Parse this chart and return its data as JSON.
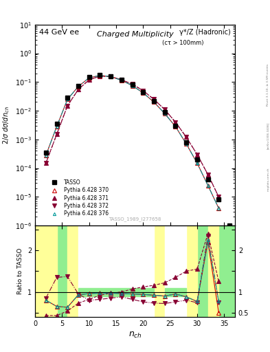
{
  "title_main": "44 GeV ee",
  "title_right": "γ*/Z (Hadronic)",
  "plot_title": "Charged Multiplicity",
  "plot_subtitle": "(cτ > 100mm)",
  "ylabel_main": "2/σ dσ/dn_ch",
  "ylabel_ratio": "Ratio to TASSO",
  "xlabel": "n_{ch}",
  "watermark": "TASSO_1989_I277658",
  "rivet_label": "Rivet 3.1.10, ≥ 3.5M events",
  "arxiv_label": "[arXiv:1306.3436]",
  "mcplots_label": "mcplots.cern.ch",
  "tasso_x": [
    2,
    4,
    6,
    8,
    10,
    12,
    14,
    16,
    18,
    20,
    22,
    24,
    26,
    28,
    30,
    32,
    34,
    36
  ],
  "tasso_y": [
    0.00035,
    0.0035,
    0.028,
    0.075,
    0.15,
    0.175,
    0.16,
    0.12,
    0.08,
    0.045,
    0.022,
    0.009,
    0.003,
    0.0008,
    0.0002,
    4e-05,
    8e-06,
    1e-06
  ],
  "p370_x": [
    2,
    4,
    6,
    8,
    10,
    12,
    14,
    16,
    18,
    20,
    22,
    24,
    26,
    28,
    30,
    32,
    34
  ],
  "p370_y": [
    0.00028,
    0.0028,
    0.025,
    0.07,
    0.14,
    0.17,
    0.155,
    0.115,
    0.075,
    0.042,
    0.02,
    0.008,
    0.0028,
    0.0007,
    0.00015,
    2.5e-05,
    4e-06
  ],
  "p371_x": [
    2,
    4,
    6,
    8,
    10,
    12,
    14,
    16,
    18,
    20,
    22,
    24,
    26,
    28,
    30,
    32,
    34
  ],
  "p371_y": [
    0.00015,
    0.0015,
    0.015,
    0.055,
    0.12,
    0.16,
    0.155,
    0.12,
    0.085,
    0.05,
    0.025,
    0.011,
    0.004,
    0.0012,
    0.0003,
    6e-05,
    1e-05
  ],
  "p372_x": [
    2,
    4,
    6,
    8,
    10,
    12,
    14,
    16,
    18,
    20,
    22,
    24,
    26,
    28,
    30,
    32,
    34
  ],
  "p372_y": [
    0.00015,
    0.0015,
    0.015,
    0.055,
    0.12,
    0.16,
    0.155,
    0.12,
    0.085,
    0.05,
    0.025,
    0.011,
    0.004,
    0.0012,
    0.0003,
    6e-05,
    1e-05
  ],
  "p376_x": [
    2,
    4,
    6,
    8,
    10,
    12,
    14,
    16,
    18,
    20,
    22,
    24,
    26,
    28,
    30,
    32,
    34
  ],
  "p376_y": [
    0.00028,
    0.0028,
    0.025,
    0.07,
    0.14,
    0.17,
    0.155,
    0.115,
    0.075,
    0.042,
    0.02,
    0.008,
    0.0028,
    0.0007,
    0.00015,
    2.5e-05,
    4e-06
  ],
  "ratio370_x": [
    2,
    4,
    6,
    8,
    10,
    12,
    14,
    16,
    18,
    20,
    22,
    24,
    26,
    28,
    30,
    32,
    34
  ],
  "ratio370_y": [
    0.8,
    0.65,
    0.63,
    0.93,
    0.96,
    0.97,
    0.97,
    0.96,
    0.95,
    0.94,
    0.92,
    0.9,
    0.95,
    0.88,
    0.77,
    2.2,
    0.5
  ],
  "ratio371_x": [
    2,
    4,
    6,
    8,
    10,
    12,
    14,
    16,
    18,
    20,
    22,
    24,
    26,
    28,
    30,
    32,
    34
  ],
  "ratio371_y": [
    0.43,
    0.43,
    0.54,
    0.73,
    0.82,
    0.92,
    0.97,
    1.0,
    1.07,
    1.12,
    1.16,
    1.22,
    1.35,
    1.5,
    1.55,
    2.4,
    1.25
  ],
  "ratio372_x": [
    2,
    4,
    6,
    8,
    10,
    12,
    14,
    16,
    18,
    20,
    22,
    24,
    26,
    28,
    30,
    32,
    34
  ],
  "ratio372_y": [
    0.85,
    1.35,
    1.37,
    0.95,
    0.8,
    0.82,
    0.85,
    0.88,
    0.82,
    0.76,
    0.73,
    0.72,
    0.76,
    0.8,
    0.74,
    2.35,
    0.75
  ],
  "ratio376_x": [
    2,
    4,
    6,
    8,
    10,
    12,
    14,
    16,
    18,
    20,
    22,
    24,
    26,
    28,
    30,
    32,
    34
  ],
  "ratio376_y": [
    0.8,
    0.65,
    0.63,
    0.93,
    0.96,
    0.97,
    0.97,
    0.96,
    0.95,
    0.94,
    0.92,
    0.9,
    0.95,
    0.88,
    0.77,
    2.25,
    0.78
  ],
  "color_tasso": "#000000",
  "color_370": "#cc0000",
  "color_371": "#880033",
  "color_372": "#880033",
  "color_376": "#009999",
  "bg_color_green": "#90ee90",
  "bg_color_yellow": "#ffff99",
  "bg_color_white": "#ffffff",
  "ylim_main": [
    1e-06,
    10
  ],
  "ylim_ratio": [
    0.4,
    2.6
  ],
  "xlim": [
    0,
    37
  ]
}
